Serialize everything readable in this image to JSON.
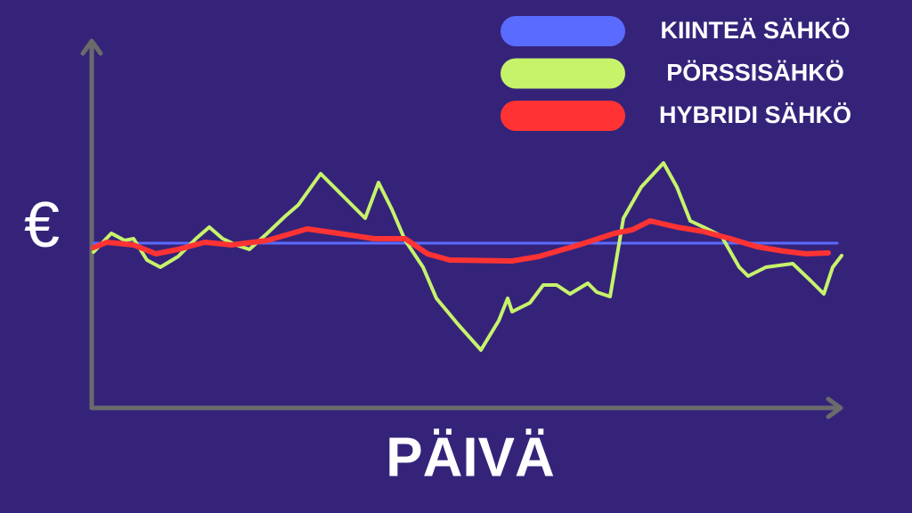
{
  "chart_data": {
    "type": "line",
    "x_label": "PÄIVÄ",
    "y_label": "€",
    "xlim": [
      0,
      840
    ],
    "ylim": [
      0,
      413
    ],
    "series": [
      {
        "name": "KIINTEÄ SÄHKÖ",
        "color": "#5a6bff",
        "width": 3,
        "x": [
          0,
          835
        ],
        "values": [
          185,
          185
        ]
      },
      {
        "name": "PÖRSSISÄHKÖ",
        "color": "#c6f36a",
        "width": 4,
        "x": [
          0,
          20,
          35,
          45,
          60,
          75,
          95,
          115,
          130,
          145,
          160,
          175,
          195,
          215,
          230,
          255,
          280,
          305,
          320,
          335,
          350,
          370,
          385,
          410,
          435,
          455,
          465,
          470,
          490,
          505,
          520,
          535,
          555,
          565,
          580,
          595,
          615,
          640,
          655,
          670,
          685,
          705,
          725,
          735,
          755,
          785,
          805,
          820,
          830,
          840
        ],
        "values": [
          175,
          196,
          188,
          190,
          166,
          158,
          170,
          190,
          203,
          190,
          183,
          178,
          196,
          215,
          228,
          263,
          238,
          213,
          253,
          223,
          188,
          158,
          123,
          93,
          65,
          98,
          123,
          108,
          118,
          138,
          138,
          128,
          140,
          130,
          125,
          213,
          248,
          275,
          248,
          210,
          203,
          193,
          158,
          148,
          158,
          162,
          143,
          128,
          158,
          171
        ]
      },
      {
        "name": "HYBRIDI SÄHKÖ",
        "color": "#ff3333",
        "width": 6,
        "x": [
          0,
          15,
          45,
          70,
          95,
          125,
          155,
          195,
          240,
          275,
          315,
          350,
          375,
          400,
          470,
          500,
          545,
          585,
          605,
          625,
          655,
          685,
          715,
          745,
          775,
          800,
          825
        ],
        "values": [
          180,
          186,
          183,
          173,
          178,
          186,
          183,
          188,
          201,
          196,
          190,
          190,
          173,
          166,
          165,
          170,
          183,
          196,
          200,
          210,
          203,
          198,
          190,
          181,
          176,
          173,
          174
        ]
      }
    ]
  }
}
